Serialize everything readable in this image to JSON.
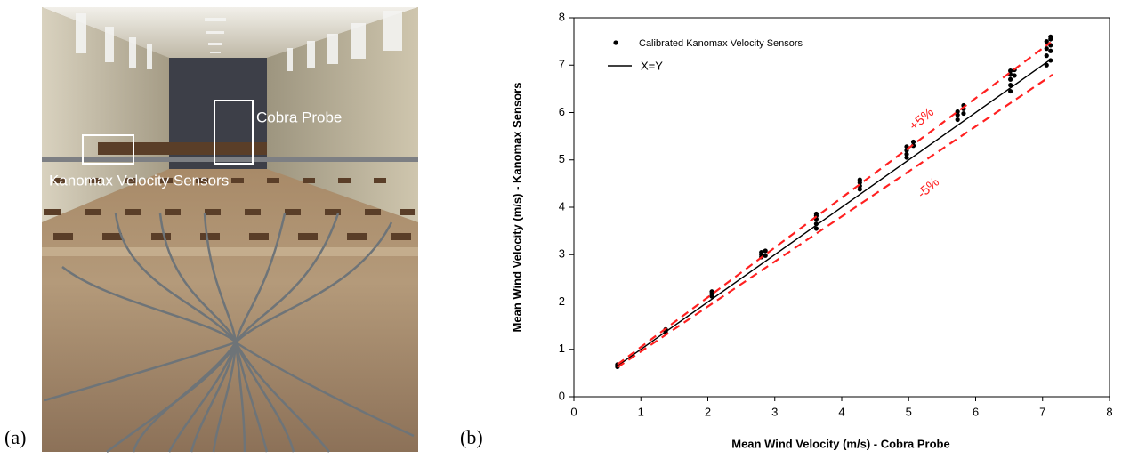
{
  "panels": {
    "a": {
      "label": "(a)",
      "annotations": [
        "Cobra Probe",
        "Kanomax Velocity Sensors"
      ]
    },
    "b": {
      "label": "(b)"
    }
  },
  "chart_data": {
    "type": "scatter",
    "xlabel": "Mean Wind Velocity (m/s) - Cobra Probe",
    "ylabel": "Mean Wind Velocity (m/s) - Kanomax Sensors",
    "xlim": [
      0,
      8
    ],
    "ylim": [
      0,
      8
    ],
    "xticks": [
      0,
      1,
      2,
      3,
      4,
      5,
      6,
      7,
      8
    ],
    "yticks": [
      0,
      1,
      2,
      3,
      4,
      5,
      6,
      7,
      8
    ],
    "legend": "upper left",
    "series": [
      {
        "name": "Calibrated Kanomax Velocity Sensors",
        "mode": "markers",
        "color": "#000000",
        "x": [
          0.65,
          0.65,
          0.65,
          1.37,
          1.37,
          1.37,
          2.06,
          2.06,
          2.06,
          2.8,
          2.8,
          2.8,
          2.86,
          2.86,
          3.62,
          3.62,
          3.62,
          3.62,
          3.62,
          4.27,
          4.27,
          4.27,
          4.27,
          4.97,
          4.97,
          4.97,
          4.97,
          5.07,
          5.07,
          5.73,
          5.73,
          5.73,
          5.82,
          5.82,
          5.82,
          6.52,
          6.52,
          6.52,
          6.52,
          6.52,
          6.58,
          6.58,
          7.06,
          7.06,
          7.06,
          7.06,
          7.12,
          7.12,
          7.12,
          7.12,
          7.12
        ],
        "values": [
          0.63,
          0.66,
          0.68,
          1.35,
          1.38,
          1.42,
          2.12,
          2.17,
          2.22,
          2.95,
          3.0,
          3.05,
          3.08,
          2.98,
          3.55,
          3.65,
          3.75,
          3.82,
          3.86,
          4.38,
          4.45,
          4.52,
          4.58,
          5.05,
          5.12,
          5.2,
          5.28,
          5.3,
          5.38,
          5.85,
          5.95,
          6.02,
          5.98,
          6.08,
          6.15,
          6.45,
          6.58,
          6.7,
          6.8,
          6.88,
          6.78,
          6.9,
          7.0,
          7.2,
          7.35,
          7.5,
          7.1,
          7.3,
          7.42,
          7.55,
          7.6
        ]
      },
      {
        "name": "X=Y",
        "mode": "line",
        "color": "#000000",
        "dash": false,
        "x": [
          0.65,
          7.1
        ],
        "values": [
          0.65,
          7.1
        ]
      },
      {
        "mode": "line",
        "color": "#ff2020",
        "dash": true,
        "x": [
          0.65,
          7.12
        ],
        "values": [
          0.68,
          7.48
        ]
      },
      {
        "mode": "line",
        "color": "#ff2020",
        "dash": true,
        "x": [
          0.65,
          7.15
        ],
        "values": [
          0.62,
          6.8
        ]
      }
    ],
    "annotations": [
      {
        "text": "+5%",
        "x": 5.2,
        "y": 5.85,
        "color": "#ff2020"
      },
      {
        "text": "-5%",
        "x": 5.3,
        "y": 4.4,
        "color": "#ff2020"
      }
    ]
  }
}
